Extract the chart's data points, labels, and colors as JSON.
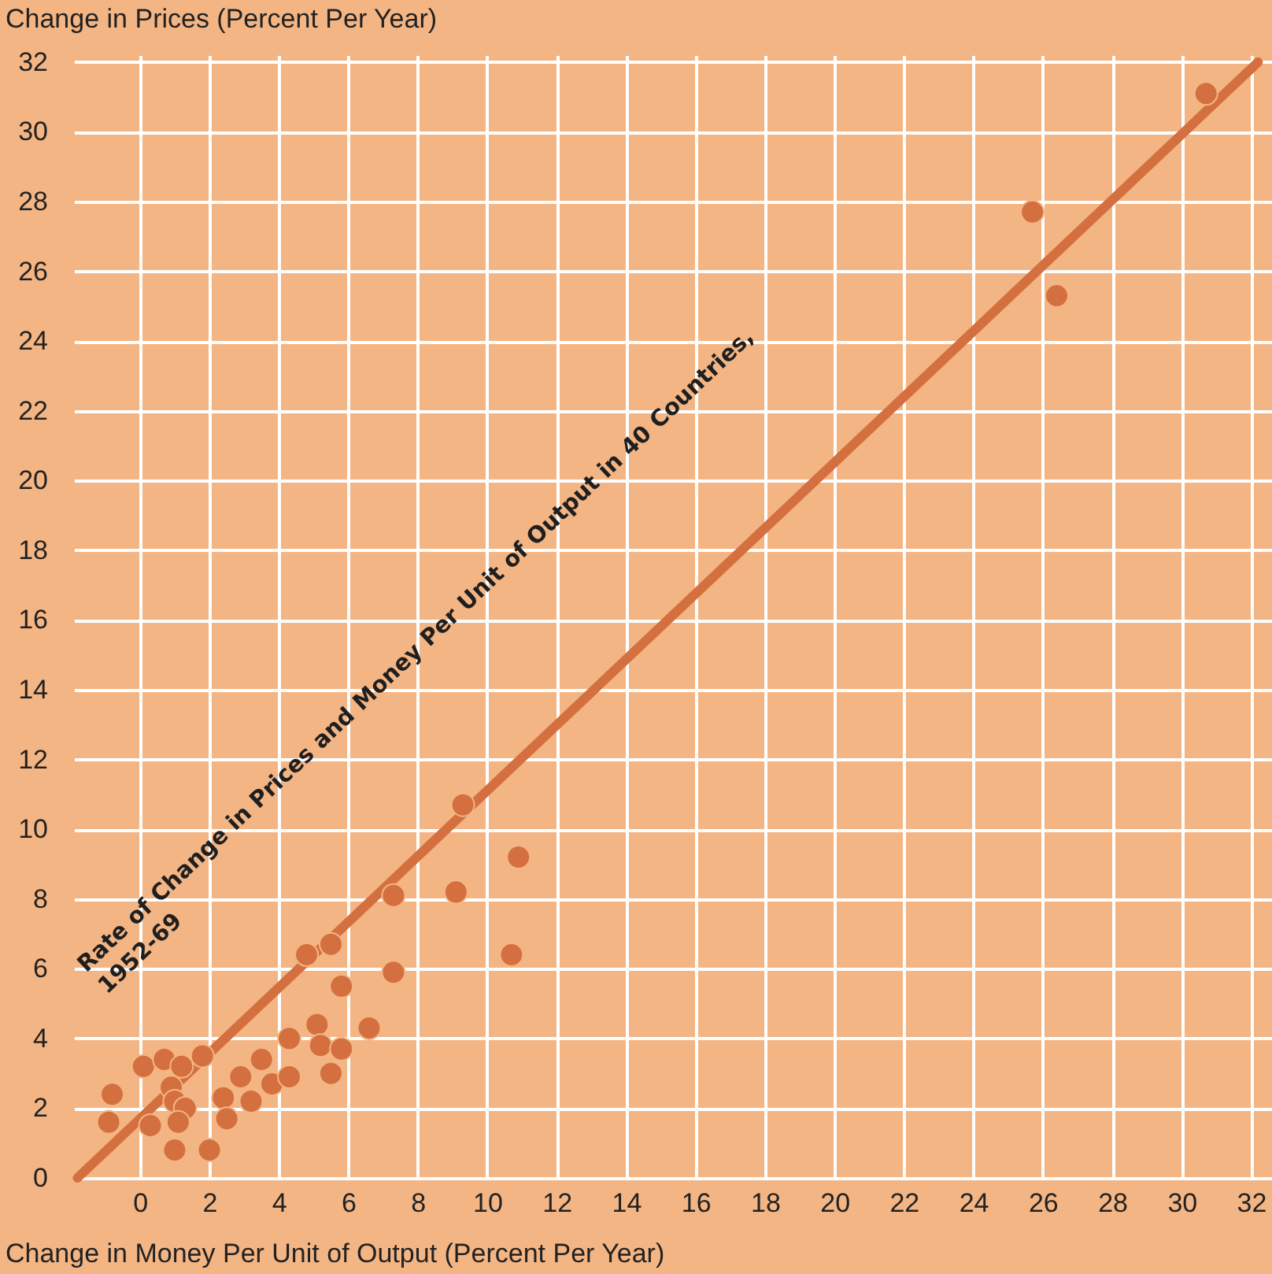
{
  "chart_data": {
    "type": "scatter",
    "xlabel": "Change in Money Per Unit of Output (Percent Per Year)",
    "ylabel": "Change in Prices (Percent Per Year)",
    "annotations": [
      "Rate of Change in Prices and Money Per Unit of Output in 40 Countries,\n1952-69"
    ],
    "xlim": [
      -1.9,
      32.6
    ],
    "ylim": [
      0,
      32.2
    ],
    "xticks": [
      0,
      2,
      4,
      6,
      8,
      10,
      12,
      14,
      16,
      18,
      20,
      22,
      24,
      26,
      28,
      30,
      32
    ],
    "yticks": [
      0,
      2,
      4,
      6,
      8,
      10,
      12,
      14,
      16,
      18,
      20,
      22,
      24,
      26,
      28,
      30,
      32
    ],
    "grid": true,
    "marker": "circle",
    "series": [
      {
        "type": "line",
        "marker": "none",
        "color": "#d4703f",
        "x": [
          -1.8,
          32.2
        ],
        "values": [
          0,
          32
        ]
      },
      {
        "color": "#d4703f",
        "x": [
          -0.8,
          -0.9,
          0.1,
          0.7,
          1.2,
          1.8,
          0.3,
          0.9,
          1.0,
          1.3,
          1.1,
          1.0,
          2.0,
          2.4,
          2.5,
          2.9,
          3.2,
          3.5,
          3.8,
          4.3,
          4.3,
          5.1,
          5.2,
          5.8,
          5.5,
          5.8,
          6.6,
          4.8,
          5.5,
          7.3,
          7.3,
          9.1,
          10.7,
          9.3,
          10.9,
          30.7,
          25.7,
          26.4
        ],
        "values": [
          2.4,
          1.6,
          3.2,
          3.4,
          3.2,
          3.5,
          1.5,
          2.6,
          2.2,
          2.0,
          1.6,
          0.8,
          0.8,
          2.3,
          1.7,
          2.9,
          2.2,
          3.4,
          2.7,
          2.9,
          4.0,
          4.4,
          3.8,
          3.7,
          3.0,
          5.5,
          4.3,
          6.4,
          6.7,
          5.9,
          8.1,
          8.2,
          6.4,
          10.7,
          9.2,
          31.1,
          27.7,
          25.3
        ]
      }
    ]
  }
}
